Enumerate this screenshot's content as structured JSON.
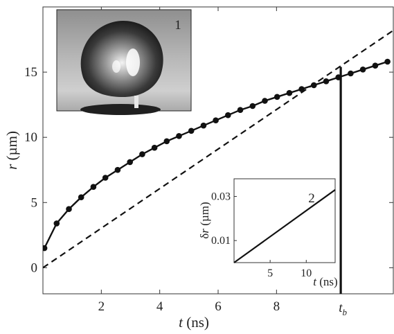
{
  "chart_data": {
    "type": "line",
    "xlabel_italic": "t",
    "xlabel_unit": " (ns)",
    "ylabel_italic": "r",
    "ylabel_unit": " (µm)",
    "xlim": [
      0,
      12
    ],
    "ylim": [
      -2,
      20
    ],
    "xticks": [
      2,
      4,
      6,
      8
    ],
    "yticks": [
      0,
      5,
      10,
      15
    ],
    "grid": false,
    "series": [
      {
        "style": "solid-with-markers",
        "x": [
          0.05,
          0.47,
          0.89,
          1.31,
          1.73,
          2.14,
          2.56,
          2.98,
          3.4,
          3.82,
          4.24,
          4.66,
          5.08,
          5.5,
          5.92,
          6.34,
          6.76,
          7.18,
          7.6,
          8.02,
          8.44,
          8.86,
          9.28,
          9.7,
          10.12,
          10.54,
          10.96,
          11.38,
          11.8
        ],
        "y": [
          1.5,
          3.4,
          4.5,
          5.4,
          6.2,
          6.9,
          7.5,
          8.1,
          8.7,
          9.2,
          9.7,
          10.1,
          10.5,
          10.9,
          11.3,
          11.7,
          12.1,
          12.4,
          12.8,
          13.1,
          13.4,
          13.7,
          14.0,
          14.3,
          14.6,
          14.9,
          15.2,
          15.5,
          15.8
        ]
      },
      {
        "style": "dashed",
        "x": [
          0.0,
          12.0
        ],
        "y": [
          0.0,
          18.2
        ]
      }
    ],
    "tb_marker": {
      "x": 10.2,
      "label_main": "t",
      "label_sub": "b"
    },
    "inset_photo": {
      "label": "1"
    },
    "inset_plot": {
      "xlabel_italic": "t",
      "xlabel_unit": " (ns)",
      "ylabel_prefix": "δ",
      "ylabel_italic": "r",
      "ylabel_unit": " (µm)",
      "xlim": [
        0,
        14
      ],
      "ylim": [
        0.0,
        0.038
      ],
      "xticks": [
        5,
        10
      ],
      "yticks": [
        0.01,
        0.03
      ],
      "ytick_labels": [
        "0.01",
        "0.03"
      ],
      "series_label": "2",
      "line": {
        "x": [
          0,
          14
        ],
        "y": [
          0.0,
          0.033
        ]
      }
    }
  },
  "colors": {
    "line": "#111111",
    "axis": "#333333"
  }
}
